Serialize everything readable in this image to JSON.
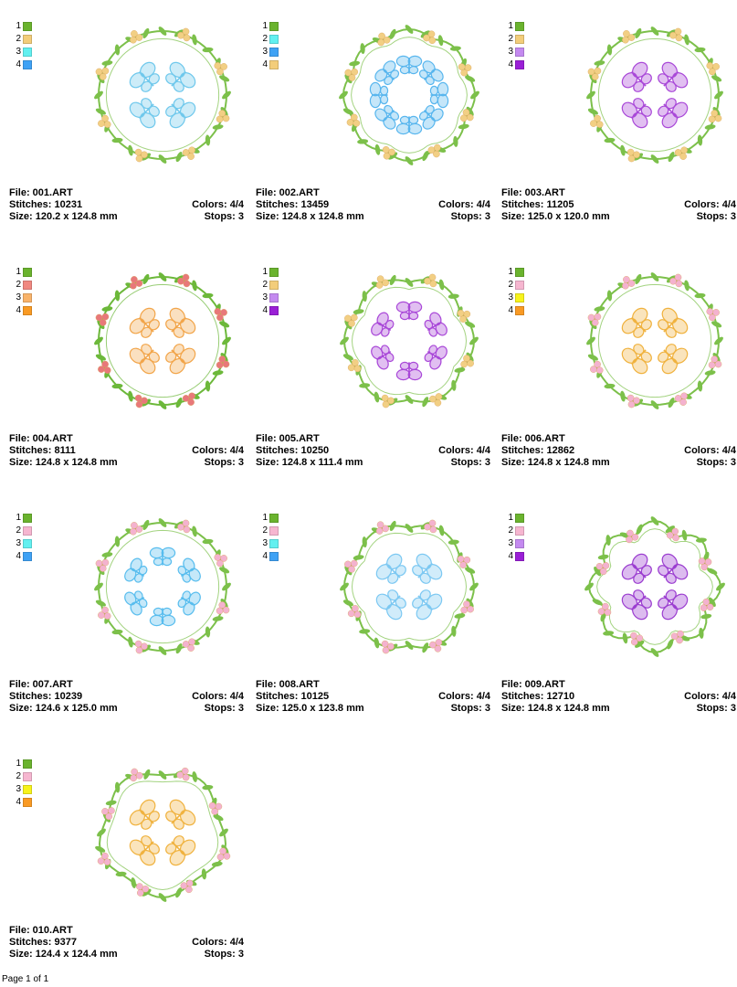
{
  "palette": {
    "green": "#6ab32e",
    "tan": "#f3cd7a",
    "cyan": "#62f0f0",
    "blue": "#3fa2f5",
    "lavender": "#c48af0",
    "purple": "#9a1fd6",
    "salmon": "#f08880",
    "orange": "#f99a24",
    "pink": "#f6b6d0",
    "yellow": "#f7f31c"
  },
  "designs": [
    {
      "file_label": "File: 001.ART",
      "stitches_label": "Stitches: 10231",
      "size_label": "Size: 120.2 x 124.8 mm",
      "colors_label": "Colors: 4/4",
      "stops_label": "Stops: 3",
      "swatches": [
        {
          "num": "1",
          "color": "#6ab32e"
        },
        {
          "num": "2",
          "color": "#f3cd7a"
        },
        {
          "num": "3",
          "color": "#62f0f0"
        },
        {
          "num": "4",
          "color": "#3fa2f5"
        }
      ],
      "motif": "butterfly",
      "motif_count": 4,
      "motif_color": "#6fc8ec",
      "accent_color": "#f2cf84",
      "vine_color": "#7cc04a",
      "frame": "circle"
    },
    {
      "file_label": "File: 002.ART",
      "stitches_label": "Stitches: 13459",
      "size_label": "Size: 124.8 x 124.8 mm",
      "colors_label": "Colors: 4/4",
      "stops_label": "Stops: 3",
      "swatches": [
        {
          "num": "1",
          "color": "#6ab32e"
        },
        {
          "num": "2",
          "color": "#62f0f0"
        },
        {
          "num": "3",
          "color": "#3fa2f5"
        },
        {
          "num": "4",
          "color": "#f3cd7a"
        }
      ],
      "motif": "butterfly",
      "motif_count": 8,
      "motif_color": "#58b6ee",
      "accent_color": "#f2cf84",
      "vine_color": "#7cc04a",
      "frame": "scallop"
    },
    {
      "file_label": "File: 003.ART",
      "stitches_label": "Stitches: 11205",
      "size_label": "Size: 125.0 x 120.0 mm",
      "colors_label": "Colors: 4/4",
      "stops_label": "Stops: 3",
      "swatches": [
        {
          "num": "1",
          "color": "#6ab32e"
        },
        {
          "num": "2",
          "color": "#f3cd7a"
        },
        {
          "num": "3",
          "color": "#c48af0"
        },
        {
          "num": "4",
          "color": "#9a1fd6"
        }
      ],
      "motif": "butterfly",
      "motif_count": 4,
      "motif_color": "#a948d8",
      "accent_color": "#f2cf84",
      "vine_color": "#7cc04a",
      "frame": "circle"
    },
    {
      "file_label": "File: 004.ART",
      "stitches_label": "Stitches: 8111",
      "size_label": "Size: 124.8 x 124.8 mm",
      "colors_label": "Colors: 4/4",
      "stops_label": "Stops: 3",
      "swatches": [
        {
          "num": "1",
          "color": "#6ab32e"
        },
        {
          "num": "2",
          "color": "#f08880"
        },
        {
          "num": "3",
          "color": "#f9b36a"
        },
        {
          "num": "4",
          "color": "#f99a24"
        }
      ],
      "motif": "butterfly",
      "motif_count": 4,
      "motif_color": "#f2a54a",
      "accent_color": "#e8787a",
      "vine_color": "#6cb83a",
      "frame": "circle"
    },
    {
      "file_label": "File: 005.ART",
      "stitches_label": "Stitches: 10250",
      "size_label": "Size: 124.8 x 111.4 mm",
      "colors_label": "Colors: 4/4",
      "stops_label": "Stops: 3",
      "swatches": [
        {
          "num": "1",
          "color": "#6ab32e"
        },
        {
          "num": "2",
          "color": "#f3cd7a"
        },
        {
          "num": "3",
          "color": "#c48af0"
        },
        {
          "num": "4",
          "color": "#9a1fd6"
        }
      ],
      "motif": "butterfly",
      "motif_count": 6,
      "motif_color": "#a948d8",
      "accent_color": "#f2cf84",
      "vine_color": "#7cc04a",
      "frame": "hexagon"
    },
    {
      "file_label": "File: 006.ART",
      "stitches_label": "Stitches: 12862",
      "size_label": "Size: 124.8 x 124.8 mm",
      "colors_label": "Colors: 4/4",
      "stops_label": "Stops: 3",
      "swatches": [
        {
          "num": "1",
          "color": "#6ab32e"
        },
        {
          "num": "2",
          "color": "#f6b6d0"
        },
        {
          "num": "3",
          "color": "#f7f31c"
        },
        {
          "num": "4",
          "color": "#f99a24"
        }
      ],
      "motif": "butterfly",
      "motif_count": 4,
      "motif_color": "#f0b23e",
      "accent_color": "#f4b2cf",
      "vine_color": "#7cc04a",
      "frame": "circle"
    },
    {
      "file_label": "File: 007.ART",
      "stitches_label": "Stitches: 10239",
      "size_label": "Size: 124.6 x 125.0 mm",
      "colors_label": "Colors: 4/4",
      "stops_label": "Stops: 3",
      "swatches": [
        {
          "num": "1",
          "color": "#6ab32e"
        },
        {
          "num": "2",
          "color": "#f6b6d0"
        },
        {
          "num": "3",
          "color": "#62f0f0"
        },
        {
          "num": "4",
          "color": "#3fa2f5"
        }
      ],
      "motif": "butterfly",
      "motif_count": 6,
      "motif_color": "#58bdee",
      "accent_color": "#f4b2cf",
      "vine_color": "#7cc04a",
      "frame": "circle"
    },
    {
      "file_label": "File: 008.ART",
      "stitches_label": "Stitches: 10125",
      "size_label": "Size: 125.0 x 123.8 mm",
      "colors_label": "Colors: 4/4",
      "stops_label": "Stops: 3",
      "swatches": [
        {
          "num": "1",
          "color": "#6ab32e"
        },
        {
          "num": "2",
          "color": "#f6b6d0"
        },
        {
          "num": "3",
          "color": "#62f0f0"
        },
        {
          "num": "4",
          "color": "#3fa2f5"
        }
      ],
      "motif": "butterfly",
      "motif_count": 4,
      "motif_color": "#7cc8f2",
      "accent_color": "#f4b2cf",
      "vine_color": "#7cc04a",
      "frame": "hexagon"
    },
    {
      "file_label": "File: 009.ART",
      "stitches_label": "Stitches: 12710",
      "size_label": "Size: 124.8 x 124.8 mm",
      "colors_label": "Colors: 4/4",
      "stops_label": "Stops: 3",
      "swatches": [
        {
          "num": "1",
          "color": "#6ab32e"
        },
        {
          "num": "2",
          "color": "#f6b6d0"
        },
        {
          "num": "3",
          "color": "#c48af0"
        },
        {
          "num": "4",
          "color": "#9a1fd6"
        }
      ],
      "motif": "butterfly",
      "motif_count": 4,
      "motif_color": "#9b3dd0",
      "accent_color": "#f4b2cf",
      "vine_color": "#7cc04a",
      "frame": "star"
    },
    {
      "file_label": "File: 010.ART",
      "stitches_label": "Stitches: 9377",
      "size_label": "Size: 124.4 x 124.4 mm",
      "colors_label": "Colors: 4/4",
      "stops_label": "Stops: 3",
      "swatches": [
        {
          "num": "1",
          "color": "#6ab32e"
        },
        {
          "num": "2",
          "color": "#f6b6d0"
        },
        {
          "num": "3",
          "color": "#f7f31c"
        },
        {
          "num": "4",
          "color": "#f99a24"
        }
      ],
      "motif": "butterfly",
      "motif_count": 4,
      "motif_color": "#f0b23e",
      "accent_color": "#f4b2cf",
      "vine_color": "#7cc04a",
      "frame": "swirl"
    }
  ],
  "footer": {
    "page_label": "Page 1 of 1"
  }
}
